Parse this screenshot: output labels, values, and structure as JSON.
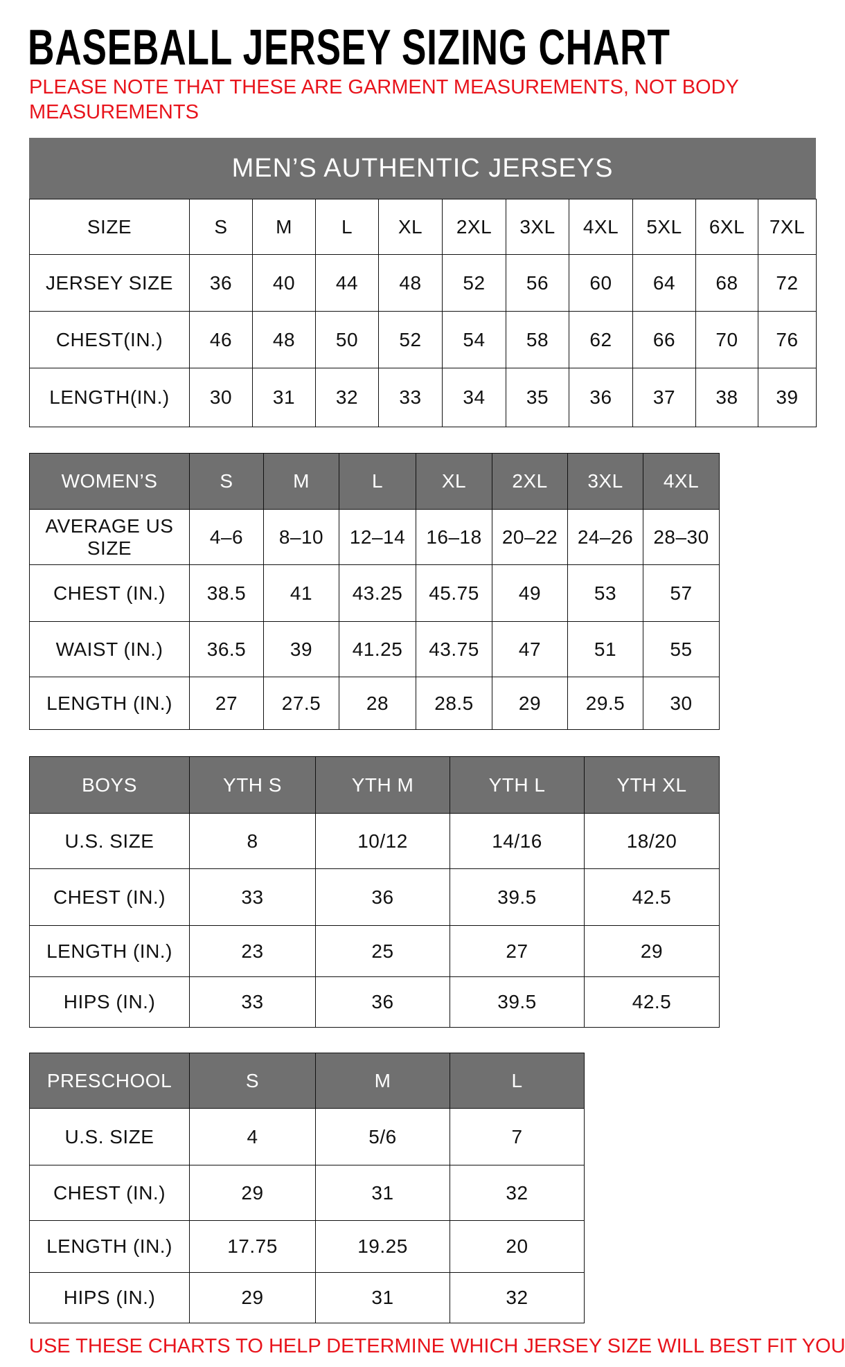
{
  "title": "BASEBALL JERSEY SIZING CHART",
  "note_top": "PLEASE NOTE THAT THESE ARE GARMENT MEASUREMENTS, NOT BODY MEASUREMENTS",
  "note_bottom": "USE THESE CHARTS TO HELP DETERMINE WHICH JERSEY SIZE WILL BEST FIT YOU.",
  "colors": {
    "header_bg": "#707070",
    "note_red": "#e8141c"
  },
  "mens": {
    "title": "MEN’S AUTHENTIC JERSEYS",
    "rows": [
      [
        "SIZE",
        "S",
        "M",
        "L",
        "XL",
        "2XL",
        "3XL",
        "4XL",
        "5XL",
        "6XL",
        "7XL"
      ],
      [
        "JERSEY SIZE",
        "36",
        "40",
        "44",
        "48",
        "52",
        "56",
        "60",
        "64",
        "68",
        "72"
      ],
      [
        "CHEST(IN.)",
        "46",
        "48",
        "50",
        "52",
        "54",
        "58",
        "62",
        "66",
        "70",
        "76"
      ],
      [
        "LENGTH(IN.)",
        "30",
        "31",
        "32",
        "33",
        "34",
        "35",
        "36",
        "37",
        "38",
        "39"
      ]
    ]
  },
  "womens": {
    "rows": [
      [
        "WOMEN’S",
        "S",
        "M",
        "L",
        "XL",
        "2XL",
        "3XL",
        "4XL"
      ],
      [
        "AVERAGE US SIZE",
        "4–6",
        "8–10",
        "12–14",
        "16–18",
        "20–22",
        "24–26",
        "28–30"
      ],
      [
        "CHEST (IN.)",
        "38.5",
        "41",
        "43.25",
        "45.75",
        "49",
        "53",
        "57"
      ],
      [
        "WAIST (IN.)",
        "36.5",
        "39",
        "41.25",
        "43.75",
        "47",
        "51",
        "55"
      ],
      [
        "LENGTH (IN.)",
        "27",
        "27.5",
        "28",
        "28.5",
        "29",
        "29.5",
        "30"
      ]
    ]
  },
  "boys": {
    "rows": [
      [
        "BOYS",
        "YTH S",
        "YTH M",
        "YTH L",
        "YTH XL"
      ],
      [
        "U.S. SIZE",
        "8",
        "10/12",
        "14/16",
        "18/20"
      ],
      [
        "CHEST (IN.)",
        "33",
        "36",
        "39.5",
        "42.5"
      ],
      [
        "LENGTH (IN.)",
        "23",
        "25",
        "27",
        "29"
      ],
      [
        "HIPS (IN.)",
        "33",
        "36",
        "39.5",
        "42.5"
      ]
    ]
  },
  "preschool": {
    "rows": [
      [
        "PRESCHOOL",
        "S",
        "M",
        "L"
      ],
      [
        "U.S. SIZE",
        "4",
        "5/6",
        "7"
      ],
      [
        "CHEST (IN.)",
        "29",
        "31",
        "32"
      ],
      [
        "LENGTH (IN.)",
        "17.75",
        "19.25",
        "20"
      ],
      [
        "HIPS (IN.)",
        "29",
        "31",
        "32"
      ]
    ]
  }
}
